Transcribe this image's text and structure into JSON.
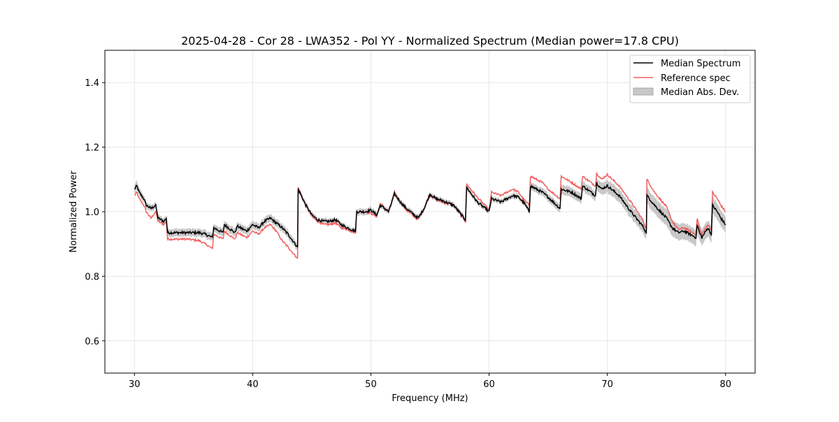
{
  "chart_data": {
    "type": "line",
    "title": "2025-04-28 - Cor 28 - LWA352 - Pol YY - Normalized Spectrum (Median power=17.8 CPU)",
    "xlabel": "Frequency (MHz)",
    "ylabel": "Normalized Power",
    "xlim": [
      27.5,
      82.5
    ],
    "ylim": [
      0.5,
      1.5
    ],
    "xticks": [
      30,
      40,
      50,
      60,
      70,
      80
    ],
    "yticks": [
      0.6,
      0.8,
      1.0,
      1.2,
      1.4
    ],
    "grid": true,
    "legend_position": "top-right",
    "legend": {
      "median": "Median Spectrum",
      "reference": "Reference spec",
      "mad": "Median Abs. Dev."
    },
    "colors": {
      "median": "#000000",
      "reference": "#f06060",
      "mad_band": "#c8c8c8",
      "grid": "#e6e6e6"
    },
    "series": [
      {
        "name": "Median Spectrum",
        "x": [
          30.0,
          30.2,
          30.4,
          30.6,
          30.8,
          31.0,
          31.4,
          31.8,
          32.0,
          32.5,
          32.7,
          32.8,
          33.5,
          34.5,
          35.5,
          36.0,
          36.6,
          36.7,
          37.5,
          37.6,
          38.5,
          38.7,
          39.5,
          40.0,
          40.5,
          41.0,
          41.5,
          42.0,
          42.5,
          43.0,
          43.8,
          43.85,
          44.5,
          45.0,
          45.5,
          46.0,
          46.5,
          47.0,
          47.5,
          48.0,
          48.7,
          48.8,
          49.5,
          50.0,
          50.5,
          50.8,
          51.5,
          52.0,
          52.5,
          53.0,
          54.0,
          54.5,
          55.0,
          55.5,
          56.0,
          57.0,
          58.0,
          58.1,
          59.0,
          60.0,
          60.2,
          61.0,
          62.0,
          62.5,
          63.0,
          63.4,
          63.5,
          64.5,
          65.0,
          66.0,
          66.1,
          67.0,
          67.8,
          67.9,
          69.0,
          69.1,
          69.5,
          70.0,
          71.0,
          72.0,
          73.0,
          73.3,
          73.35,
          74.0,
          75.0,
          75.5,
          76.0,
          76.5,
          77.0,
          77.5,
          77.6,
          77.8,
          78.0,
          78.5,
          78.8,
          78.9,
          79.3,
          79.6,
          80.0
        ],
        "values": [
          1.07,
          1.08,
          1.06,
          1.05,
          1.04,
          1.02,
          1.01,
          1.02,
          0.98,
          0.97,
          0.98,
          0.935,
          0.935,
          0.935,
          0.935,
          0.93,
          0.92,
          0.95,
          0.935,
          0.96,
          0.935,
          0.955,
          0.94,
          0.96,
          0.95,
          0.97,
          0.98,
          0.965,
          0.95,
          0.93,
          0.89,
          1.07,
          1.02,
          0.99,
          0.975,
          0.97,
          0.97,
          0.975,
          0.96,
          0.95,
          0.94,
          1.0,
          1.0,
          1.005,
          0.99,
          1.02,
          1.0,
          1.055,
          1.03,
          1.01,
          0.98,
          1.01,
          1.055,
          1.04,
          1.035,
          1.02,
          0.975,
          1.075,
          1.03,
          1.0,
          1.04,
          1.03,
          1.05,
          1.045,
          1.025,
          1.0,
          1.08,
          1.06,
          1.045,
          1.01,
          1.07,
          1.06,
          1.04,
          1.08,
          1.05,
          1.09,
          1.07,
          1.08,
          1.05,
          1.0,
          0.955,
          0.935,
          1.05,
          1.02,
          0.98,
          0.95,
          0.935,
          0.94,
          0.93,
          0.92,
          0.96,
          0.935,
          0.92,
          0.95,
          0.93,
          1.02,
          1.0,
          0.98,
          0.96
        ]
      },
      {
        "name": "Reference spec",
        "x": [
          30.0,
          30.2,
          30.4,
          30.6,
          30.8,
          31.0,
          31.4,
          31.8,
          32.0,
          32.5,
          32.7,
          32.8,
          33.5,
          34.5,
          35.5,
          36.0,
          36.6,
          36.7,
          37.5,
          37.6,
          38.5,
          38.7,
          39.5,
          40.0,
          40.5,
          41.0,
          41.5,
          42.0,
          42.5,
          43.0,
          43.8,
          43.85,
          44.5,
          45.0,
          45.5,
          46.0,
          46.5,
          47.0,
          47.5,
          48.0,
          48.7,
          48.8,
          49.5,
          50.0,
          50.5,
          50.8,
          51.5,
          52.0,
          52.5,
          53.0,
          54.0,
          54.5,
          55.0,
          55.5,
          56.0,
          57.0,
          58.0,
          58.1,
          59.0,
          60.0,
          60.2,
          61.0,
          62.0,
          62.5,
          63.0,
          63.4,
          63.5,
          64.5,
          65.0,
          66.0,
          66.1,
          67.0,
          67.8,
          67.9,
          69.0,
          69.1,
          69.5,
          70.0,
          71.0,
          72.0,
          73.0,
          73.3,
          73.35,
          74.0,
          75.0,
          75.5,
          76.0,
          76.5,
          77.0,
          77.5,
          77.6,
          77.8,
          78.0,
          78.5,
          78.8,
          78.9,
          79.3,
          79.6,
          80.0
        ],
        "values": [
          1.05,
          1.06,
          1.04,
          1.03,
          1.02,
          1.0,
          0.98,
          1.0,
          0.97,
          0.96,
          0.97,
          0.915,
          0.915,
          0.915,
          0.91,
          0.9,
          0.885,
          0.93,
          0.915,
          0.94,
          0.915,
          0.935,
          0.92,
          0.94,
          0.93,
          0.95,
          0.96,
          0.94,
          0.91,
          0.89,
          0.855,
          1.075,
          1.02,
          0.985,
          0.97,
          0.96,
          0.96,
          0.965,
          0.95,
          0.945,
          0.935,
          1.0,
          1.0,
          0.995,
          0.985,
          1.025,
          1.0,
          1.06,
          1.03,
          1.005,
          0.975,
          1.01,
          1.05,
          1.04,
          1.03,
          1.02,
          0.97,
          1.085,
          1.045,
          1.005,
          1.06,
          1.05,
          1.07,
          1.06,
          1.035,
          1.02,
          1.11,
          1.09,
          1.07,
          1.04,
          1.11,
          1.09,
          1.07,
          1.11,
          1.08,
          1.12,
          1.1,
          1.115,
          1.08,
          1.03,
          0.975,
          0.945,
          1.1,
          1.06,
          1.015,
          0.97,
          0.945,
          0.95,
          0.94,
          0.93,
          0.98,
          0.95,
          0.93,
          0.96,
          0.945,
          1.06,
          1.04,
          1.02,
          1.0
        ]
      },
      {
        "name": "Median Abs. Dev.",
        "x": [
          30.0,
          30.2,
          30.4,
          30.6,
          30.8,
          31.0,
          31.4,
          31.8,
          32.0,
          32.5,
          32.7,
          32.8,
          33.5,
          34.5,
          35.5,
          36.0,
          36.6,
          36.7,
          37.5,
          37.6,
          38.5,
          38.7,
          39.5,
          40.0,
          40.5,
          41.0,
          41.5,
          42.0,
          42.5,
          43.0,
          43.8,
          43.85,
          44.5,
          45.0,
          45.5,
          46.0,
          46.5,
          47.0,
          47.5,
          48.0,
          48.7,
          48.8,
          49.5,
          50.0,
          50.5,
          50.8,
          51.5,
          52.0,
          52.5,
          53.0,
          54.0,
          54.5,
          55.0,
          55.5,
          56.0,
          57.0,
          58.0,
          58.1,
          59.0,
          60.0,
          60.2,
          61.0,
          62.0,
          62.5,
          63.0,
          63.4,
          63.5,
          64.5,
          65.0,
          66.0,
          66.1,
          67.0,
          67.8,
          67.9,
          69.0,
          69.1,
          69.5,
          70.0,
          71.0,
          72.0,
          73.0,
          73.3,
          73.35,
          74.0,
          75.0,
          75.5,
          76.0,
          76.5,
          77.0,
          77.5,
          77.6,
          77.8,
          78.0,
          78.5,
          78.8,
          78.9,
          79.3,
          79.6,
          80.0
        ],
        "values": [
          0.012,
          0.015,
          0.012,
          0.012,
          0.01,
          0.01,
          0.01,
          0.01,
          0.01,
          0.01,
          0.01,
          0.012,
          0.012,
          0.012,
          0.012,
          0.012,
          0.012,
          0.012,
          0.012,
          0.012,
          0.012,
          0.012,
          0.012,
          0.012,
          0.012,
          0.012,
          0.012,
          0.012,
          0.012,
          0.012,
          0.01,
          0.008,
          0.008,
          0.008,
          0.008,
          0.008,
          0.008,
          0.008,
          0.008,
          0.008,
          0.008,
          0.01,
          0.01,
          0.01,
          0.008,
          0.008,
          0.008,
          0.008,
          0.008,
          0.008,
          0.008,
          0.008,
          0.008,
          0.008,
          0.008,
          0.008,
          0.008,
          0.008,
          0.008,
          0.008,
          0.008,
          0.008,
          0.008,
          0.008,
          0.008,
          0.008,
          0.012,
          0.012,
          0.012,
          0.012,
          0.015,
          0.015,
          0.015,
          0.015,
          0.015,
          0.018,
          0.018,
          0.02,
          0.02,
          0.02,
          0.02,
          0.02,
          0.025,
          0.025,
          0.025,
          0.025,
          0.025,
          0.025,
          0.025,
          0.025,
          0.025,
          0.025,
          0.025,
          0.025,
          0.025,
          0.025,
          0.025,
          0.025,
          0.025
        ]
      }
    ]
  }
}
